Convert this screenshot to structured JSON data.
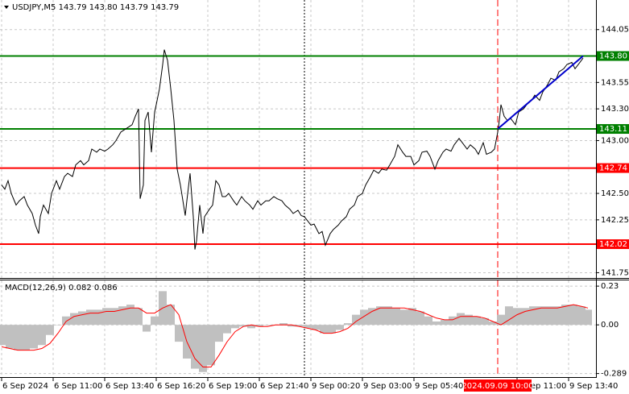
{
  "chart_data": [
    {
      "type": "line",
      "title": "USDJPY,M5  143.79 143.80 143.79 143.79",
      "color": "#000000",
      "x": [
        0,
        2,
        4,
        6,
        9,
        11,
        14,
        16,
        19,
        21,
        23,
        24,
        26,
        29,
        31,
        34,
        36,
        39,
        41,
        44,
        46,
        49,
        51,
        54,
        56,
        59,
        61,
        64,
        66,
        69,
        71,
        74,
        76,
        79,
        81,
        83,
        85,
        86,
        88,
        89,
        91,
        93,
        95,
        96,
        98,
        100,
        101,
        103,
        105,
        107,
        109,
        111,
        114,
        115,
        117,
        119,
        120,
        121,
        123,
        125,
        126,
        129,
        131,
        133,
        135,
        137,
        139,
        141,
        144,
        146,
        149,
        151,
        154,
        156,
        159,
        161,
        164,
        166,
        169,
        171,
        174,
        176,
        179,
        181,
        184,
        186,
        188,
        192,
        194,
        197,
        199,
        201,
        204,
        206,
        209,
        211,
        214,
        216,
        219,
        221,
        224,
        226,
        229,
        231,
        234,
        236,
        239,
        241,
        244,
        246,
        249,
        251,
        254,
        256,
        259,
        261,
        264,
        266,
        269,
        271,
        274,
        276,
        279,
        281,
        284,
        286,
        289,
        291,
        294,
        296,
        299,
        301,
        304,
        306,
        308,
        309,
        310,
        312,
        314,
        316,
        319,
        321,
        324,
        326,
        329,
        331,
        334,
        336,
        339,
        341,
        344,
        346,
        349,
        351,
        354,
        356,
        359,
        361
      ],
      "values": [
        142.58,
        142.54,
        142.62,
        142.5,
        142.39,
        142.43,
        142.47,
        142.39,
        142.31,
        142.2,
        142.12,
        142.28,
        142.39,
        142.31,
        142.5,
        142.62,
        142.54,
        142.66,
        142.69,
        142.66,
        142.77,
        142.81,
        142.77,
        142.81,
        142.92,
        142.89,
        142.92,
        142.9,
        142.92,
        142.96,
        143.0,
        143.08,
        143.1,
        143.13,
        143.15,
        143.23,
        143.3,
        142.45,
        142.58,
        143.19,
        143.27,
        142.89,
        143.27,
        143.34,
        143.49,
        143.72,
        143.86,
        143.76,
        143.49,
        143.19,
        142.73,
        142.58,
        142.29,
        142.43,
        142.69,
        142.28,
        141.97,
        142.05,
        142.39,
        142.12,
        142.28,
        142.35,
        142.39,
        142.62,
        142.58,
        142.47,
        142.47,
        142.5,
        142.43,
        142.39,
        142.47,
        142.43,
        142.39,
        142.35,
        142.43,
        142.39,
        142.43,
        142.43,
        142.47,
        142.45,
        142.43,
        142.39,
        142.35,
        142.31,
        142.34,
        142.29,
        142.28,
        142.2,
        142.21,
        142.12,
        142.14,
        142.01,
        142.12,
        142.16,
        142.2,
        142.24,
        142.28,
        142.35,
        142.39,
        142.47,
        142.5,
        142.58,
        142.66,
        142.72,
        142.69,
        142.73,
        142.72,
        142.77,
        142.85,
        142.96,
        142.89,
        142.85,
        142.85,
        142.77,
        142.81,
        142.89,
        142.9,
        142.85,
        142.73,
        142.81,
        142.89,
        142.92,
        142.9,
        142.96,
        143.02,
        142.98,
        142.92,
        142.96,
        142.92,
        142.87,
        142.98,
        142.87,
        142.89,
        142.92,
        143.08,
        143.19,
        143.34,
        143.23,
        143.19,
        143.21,
        143.15,
        143.27,
        143.3,
        143.34,
        143.38,
        143.43,
        143.38,
        143.46,
        143.53,
        143.59,
        143.57,
        143.65,
        143.68,
        143.72,
        143.74,
        143.68,
        143.74,
        143.78
      ],
      "xlim": [
        -1,
        369
      ],
      "xticks": [
        {
          "value": 0,
          "label": "6 Sep 2024"
        },
        {
          "value": 32,
          "label": "6 Sep 11:00"
        },
        {
          "value": 64,
          "label": "6 Sep 13:40"
        },
        {
          "value": 96,
          "label": "6 Sep 16:20"
        },
        {
          "value": 128,
          "label": "6 Sep 19:00"
        },
        {
          "value": 160,
          "label": "6 Sep 21:40"
        },
        {
          "value": 192,
          "label": "9 Sep 00:20"
        },
        {
          "value": 224,
          "label": "9 Sep 03:00"
        },
        {
          "value": 256,
          "label": "9 Sep 05:40"
        },
        {
          "value": 320,
          "label": "9 Sep 11:00"
        },
        {
          "value": 352,
          "label": "9 Sep 13:40"
        }
      ],
      "ylim": [
        141.7,
        144.33
      ],
      "yticks": [
        144.05,
        143.55,
        {
          "value": 143.3,
          "label": "143.30"
        },
        {
          "value": 143,
          "label": "143.00"
        },
        {
          "value": 142.5,
          "label": "142.50"
        },
        142.25,
        141.75
      ],
      "grid": true,
      "levels": [
        {
          "value": 143.8,
          "label": "143.80",
          "color": "#008000"
        },
        {
          "value": 143.11,
          "label": "143.11",
          "color": "#008000"
        },
        {
          "value": 142.74,
          "label": "142.74",
          "color": "#ff0000"
        },
        {
          "value": 142.02,
          "label": "142.02",
          "color": "#ff0000"
        }
      ],
      "trendline": {
        "x": [
          308,
          361
        ],
        "values": [
          143.11,
          143.8
        ],
        "color": "#0000cc"
      },
      "day_separator": 188,
      "marker": {
        "value": 308,
        "label": "2024.09.09 10:00",
        "color": "#ff0000"
      }
    },
    {
      "type": "bar",
      "title": "MACD(12,26,9) 0.082 0.086",
      "x": [
        0,
        5,
        10,
        15,
        20,
        25,
        30,
        35,
        40,
        45,
        50,
        55,
        60,
        65,
        70,
        75,
        80,
        85,
        90,
        95,
        100,
        105,
        110,
        115,
        120,
        125,
        130,
        135,
        140,
        145,
        150,
        155,
        160,
        165,
        170,
        175,
        180,
        185,
        190,
        195,
        200,
        205,
        210,
        215,
        220,
        225,
        230,
        235,
        240,
        245,
        250,
        255,
        260,
        265,
        270,
        275,
        280,
        285,
        290,
        295,
        300,
        305,
        310,
        315,
        320,
        325,
        330,
        335,
        340,
        345,
        350,
        355,
        360,
        364
      ],
      "histogram": {
        "color": "#c0c0c0",
        "values": [
          -0.12,
          -0.14,
          -0.15,
          -0.15,
          -0.14,
          -0.12,
          -0.06,
          0.0,
          0.05,
          0.07,
          0.08,
          0.09,
          0.09,
          0.1,
          0.1,
          0.11,
          0.12,
          0.1,
          -0.04,
          0.05,
          0.2,
          0.12,
          -0.1,
          -0.2,
          -0.26,
          -0.28,
          -0.24,
          -0.1,
          -0.05,
          -0.02,
          -0.01,
          -0.02,
          -0.01,
          0.0,
          0.0,
          0.01,
          -0.01,
          -0.01,
          -0.02,
          -0.03,
          -0.05,
          -0.05,
          -0.03,
          0.01,
          0.06,
          0.09,
          0.1,
          0.11,
          0.11,
          0.1,
          0.09,
          0.1,
          0.08,
          0.05,
          0.02,
          0.03,
          0.05,
          0.07,
          0.06,
          0.05,
          0.04,
          0.02,
          0.06,
          0.11,
          0.1,
          0.1,
          0.11,
          0.11,
          0.11,
          0.11,
          0.12,
          0.12,
          0.11,
          0.09
        ]
      },
      "signal": {
        "color": "#ff0000",
        "values": [
          -0.13,
          -0.14,
          -0.15,
          -0.15,
          -0.15,
          -0.14,
          -0.11,
          -0.05,
          0.02,
          0.05,
          0.06,
          0.07,
          0.07,
          0.08,
          0.08,
          0.09,
          0.1,
          0.1,
          0.07,
          0.07,
          0.1,
          0.12,
          0.06,
          -0.1,
          -0.2,
          -0.25,
          -0.25,
          -0.18,
          -0.1,
          -0.04,
          -0.01,
          0.0,
          -0.01,
          -0.01,
          0.0,
          0.0,
          0.0,
          -0.01,
          -0.02,
          -0.03,
          -0.05,
          -0.05,
          -0.04,
          -0.02,
          0.02,
          0.05,
          0.08,
          0.1,
          0.1,
          0.1,
          0.1,
          0.09,
          0.08,
          0.06,
          0.04,
          0.03,
          0.03,
          0.05,
          0.05,
          0.05,
          0.04,
          0.02,
          0.0,
          0.03,
          0.06,
          0.08,
          0.09,
          0.1,
          0.1,
          0.1,
          0.11,
          0.12,
          0.11,
          0.1
        ]
      },
      "xlim": [
        -1,
        369
      ],
      "ylim": [
        -0.31,
        0.264
      ],
      "yticks": [
        0.23,
        {
          "value": 0,
          "label": "0.00"
        },
        -0.289
      ],
      "grid": true
    }
  ]
}
